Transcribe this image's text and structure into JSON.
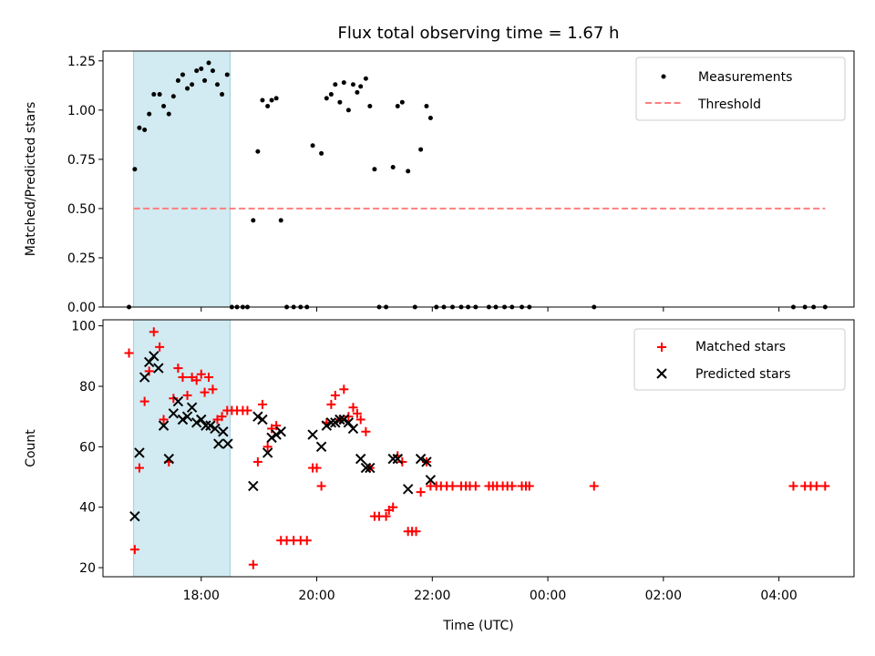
{
  "title": "Flux total observing time = 1.67 h",
  "colors": {
    "band": "#add8e6",
    "band_edge": "#9ecfdc",
    "measurement": "#000000",
    "threshold": "#ff7f7f",
    "matched": "#ff0000",
    "predicted": "#000000"
  },
  "x_axis": {
    "label": "Time (UTC)",
    "ticks": [
      {
        "t": 18,
        "label": "18:00"
      },
      {
        "t": 20,
        "label": "20:00"
      },
      {
        "t": 22,
        "label": "22:00"
      },
      {
        "t": 24,
        "label": "00:00"
      },
      {
        "t": 26,
        "label": "02:00"
      },
      {
        "t": 28,
        "label": "04:00"
      }
    ],
    "range": [
      16.3,
      29.3
    ]
  },
  "highlight_band": {
    "start": 16.83,
    "end": 18.5
  },
  "chart_data": [
    {
      "type": "scatter",
      "panel": "top",
      "ylabel": "Matched/Predicted stars",
      "ylim": [
        0,
        1.3
      ],
      "yticks": [
        "0.00",
        "0.25",
        "0.50",
        "0.75",
        "1.00",
        "1.25"
      ],
      "threshold": {
        "name": "Threshold",
        "value": 0.5,
        "x_range": [
          16.83,
          28.8
        ]
      },
      "legend": {
        "position": "upper right",
        "entries": [
          "Measurements",
          "Threshold"
        ]
      },
      "series": [
        {
          "name": "Measurements",
          "points": [
            [
              16.75,
              0
            ],
            [
              16.85,
              0.7
            ],
            [
              16.93,
              0.91
            ],
            [
              17.02,
              0.9
            ],
            [
              17.1,
              0.98
            ],
            [
              17.18,
              1.08
            ],
            [
              17.28,
              1.08
            ],
            [
              17.35,
              1.02
            ],
            [
              17.44,
              0.98
            ],
            [
              17.52,
              1.07
            ],
            [
              17.6,
              1.15
            ],
            [
              17.68,
              1.18
            ],
            [
              17.76,
              1.11
            ],
            [
              17.84,
              1.13
            ],
            [
              17.92,
              1.2
            ],
            [
              18.0,
              1.21
            ],
            [
              18.06,
              1.15
            ],
            [
              18.13,
              1.24
            ],
            [
              18.2,
              1.2
            ],
            [
              18.28,
              1.13
            ],
            [
              18.36,
              1.08
            ],
            [
              18.45,
              1.18
            ],
            [
              18.53,
              0
            ],
            [
              18.62,
              0
            ],
            [
              18.72,
              0
            ],
            [
              18.8,
              0
            ],
            [
              18.9,
              0.44
            ],
            [
              18.98,
              0.79
            ],
            [
              19.06,
              1.05
            ],
            [
              19.15,
              1.02
            ],
            [
              19.22,
              1.05
            ],
            [
              19.3,
              1.06
            ],
            [
              19.38,
              0.44
            ],
            [
              19.48,
              0
            ],
            [
              19.6,
              0
            ],
            [
              19.72,
              0
            ],
            [
              19.83,
              0
            ],
            [
              19.93,
              0.82
            ],
            [
              20.08,
              0.78
            ],
            [
              20.17,
              1.06
            ],
            [
              20.25,
              1.08
            ],
            [
              20.32,
              1.13
            ],
            [
              20.4,
              1.04
            ],
            [
              20.47,
              1.14
            ],
            [
              20.55,
              1.0
            ],
            [
              20.63,
              1.13
            ],
            [
              20.7,
              1.09
            ],
            [
              20.76,
              1.12
            ],
            [
              20.85,
              1.16
            ],
            [
              20.92,
              1.02
            ],
            [
              21.0,
              0.7
            ],
            [
              21.08,
              0
            ],
            [
              21.2,
              0
            ],
            [
              21.32,
              0.71
            ],
            [
              21.4,
              1.02
            ],
            [
              21.48,
              1.04
            ],
            [
              21.58,
              0.69
            ],
            [
              21.7,
              0
            ],
            [
              21.8,
              0.8
            ],
            [
              21.9,
              1.02
            ],
            [
              21.97,
              0.96
            ],
            [
              22.07,
              0
            ],
            [
              22.2,
              0
            ],
            [
              22.35,
              0
            ],
            [
              22.5,
              0
            ],
            [
              22.62,
              0
            ],
            [
              22.75,
              0
            ],
            [
              22.98,
              0
            ],
            [
              23.1,
              0
            ],
            [
              23.25,
              0
            ],
            [
              23.38,
              0
            ],
            [
              23.55,
              0
            ],
            [
              23.68,
              0
            ],
            [
              24.8,
              0
            ],
            [
              28.25,
              0
            ],
            [
              28.45,
              0
            ],
            [
              28.6,
              0
            ],
            [
              28.8,
              0
            ]
          ]
        }
      ]
    },
    {
      "type": "scatter",
      "panel": "bottom",
      "ylabel": "Count",
      "ylim": [
        17,
        102
      ],
      "yticks": [
        "20",
        "40",
        "60",
        "80",
        "100"
      ],
      "legend": {
        "position": "upper right",
        "entries": [
          "Matched stars",
          "Predicted stars"
        ]
      },
      "series": [
        {
          "name": "Matched stars",
          "marker": "plus",
          "points": [
            [
              16.75,
              91
            ],
            [
              16.85,
              26
            ],
            [
              16.93,
              53
            ],
            [
              17.02,
              75
            ],
            [
              17.1,
              85
            ],
            [
              17.18,
              98
            ],
            [
              17.28,
              93
            ],
            [
              17.35,
              69
            ],
            [
              17.44,
              55
            ],
            [
              17.52,
              76
            ],
            [
              17.6,
              86
            ],
            [
              17.68,
              83
            ],
            [
              17.76,
              77
            ],
            [
              17.84,
              83
            ],
            [
              17.92,
              82
            ],
            [
              18.0,
              84
            ],
            [
              18.06,
              78
            ],
            [
              18.13,
              83
            ],
            [
              18.2,
              79
            ],
            [
              18.28,
              69
            ],
            [
              18.36,
              70
            ],
            [
              18.45,
              72
            ],
            [
              18.53,
              72
            ],
            [
              18.62,
              72
            ],
            [
              18.72,
              72
            ],
            [
              18.8,
              72
            ],
            [
              18.9,
              21
            ],
            [
              18.98,
              55
            ],
            [
              19.06,
              74
            ],
            [
              19.15,
              60
            ],
            [
              19.22,
              66
            ],
            [
              19.3,
              67
            ],
            [
              19.38,
              29
            ],
            [
              19.48,
              29
            ],
            [
              19.6,
              29
            ],
            [
              19.72,
              29
            ],
            [
              19.83,
              29
            ],
            [
              19.93,
              53
            ],
            [
              20.0,
              53
            ],
            [
              20.08,
              47
            ],
            [
              20.17,
              68
            ],
            [
              20.25,
              74
            ],
            [
              20.32,
              77
            ],
            [
              20.4,
              69
            ],
            [
              20.47,
              79
            ],
            [
              20.55,
              70
            ],
            [
              20.63,
              73
            ],
            [
              20.7,
              71
            ],
            [
              20.76,
              69
            ],
            [
              20.85,
              65
            ],
            [
              20.92,
              53
            ],
            [
              21.0,
              37
            ],
            [
              21.08,
              37
            ],
            [
              21.2,
              37
            ],
            [
              21.25,
              39
            ],
            [
              21.32,
              40
            ],
            [
              21.4,
              57
            ],
            [
              21.48,
              55
            ],
            [
              21.58,
              32
            ],
            [
              21.65,
              32
            ],
            [
              21.72,
              32
            ],
            [
              21.8,
              45
            ],
            [
              21.9,
              55
            ],
            [
              21.97,
              47
            ],
            [
              22.07,
              47
            ],
            [
              22.15,
              47
            ],
            [
              22.25,
              47
            ],
            [
              22.35,
              47
            ],
            [
              22.5,
              47
            ],
            [
              22.58,
              47
            ],
            [
              22.65,
              47
            ],
            [
              22.75,
              47
            ],
            [
              22.98,
              47
            ],
            [
              23.05,
              47
            ],
            [
              23.12,
              47
            ],
            [
              23.22,
              47
            ],
            [
              23.3,
              47
            ],
            [
              23.38,
              47
            ],
            [
              23.55,
              47
            ],
            [
              23.62,
              47
            ],
            [
              23.68,
              47
            ],
            [
              24.8,
              47
            ],
            [
              28.25,
              47
            ],
            [
              28.45,
              47
            ],
            [
              28.55,
              47
            ],
            [
              28.65,
              47
            ],
            [
              28.8,
              47
            ]
          ]
        },
        {
          "name": "Predicted stars",
          "marker": "x",
          "points": [
            [
              16.85,
              37
            ],
            [
              16.93,
              58
            ],
            [
              17.02,
              83
            ],
            [
              17.1,
              88
            ],
            [
              17.18,
              90
            ],
            [
              17.26,
              86
            ],
            [
              17.35,
              67
            ],
            [
              17.44,
              56
            ],
            [
              17.52,
              71
            ],
            [
              17.6,
              75
            ],
            [
              17.68,
              69
            ],
            [
              17.76,
              70
            ],
            [
              17.84,
              73
            ],
            [
              17.92,
              68
            ],
            [
              18.0,
              69
            ],
            [
              18.08,
              67
            ],
            [
              18.16,
              67
            ],
            [
              18.24,
              66
            ],
            [
              18.3,
              61
            ],
            [
              18.38,
              65
            ],
            [
              18.46,
              61
            ],
            [
              18.9,
              47
            ],
            [
              18.98,
              70
            ],
            [
              19.06,
              69
            ],
            [
              19.15,
              58
            ],
            [
              19.22,
              63
            ],
            [
              19.3,
              64
            ],
            [
              19.38,
              65
            ],
            [
              19.93,
              64
            ],
            [
              20.08,
              60
            ],
            [
              20.17,
              67
            ],
            [
              20.25,
              68
            ],
            [
              20.32,
              68
            ],
            [
              20.4,
              69
            ],
            [
              20.47,
              69
            ],
            [
              20.55,
              68
            ],
            [
              20.63,
              66
            ],
            [
              20.76,
              56
            ],
            [
              20.85,
              53
            ],
            [
              20.92,
              53
            ],
            [
              21.32,
              56
            ],
            [
              21.4,
              56
            ],
            [
              21.58,
              46
            ],
            [
              21.8,
              56
            ],
            [
              21.9,
              55
            ],
            [
              21.97,
              49
            ]
          ]
        }
      ]
    }
  ]
}
